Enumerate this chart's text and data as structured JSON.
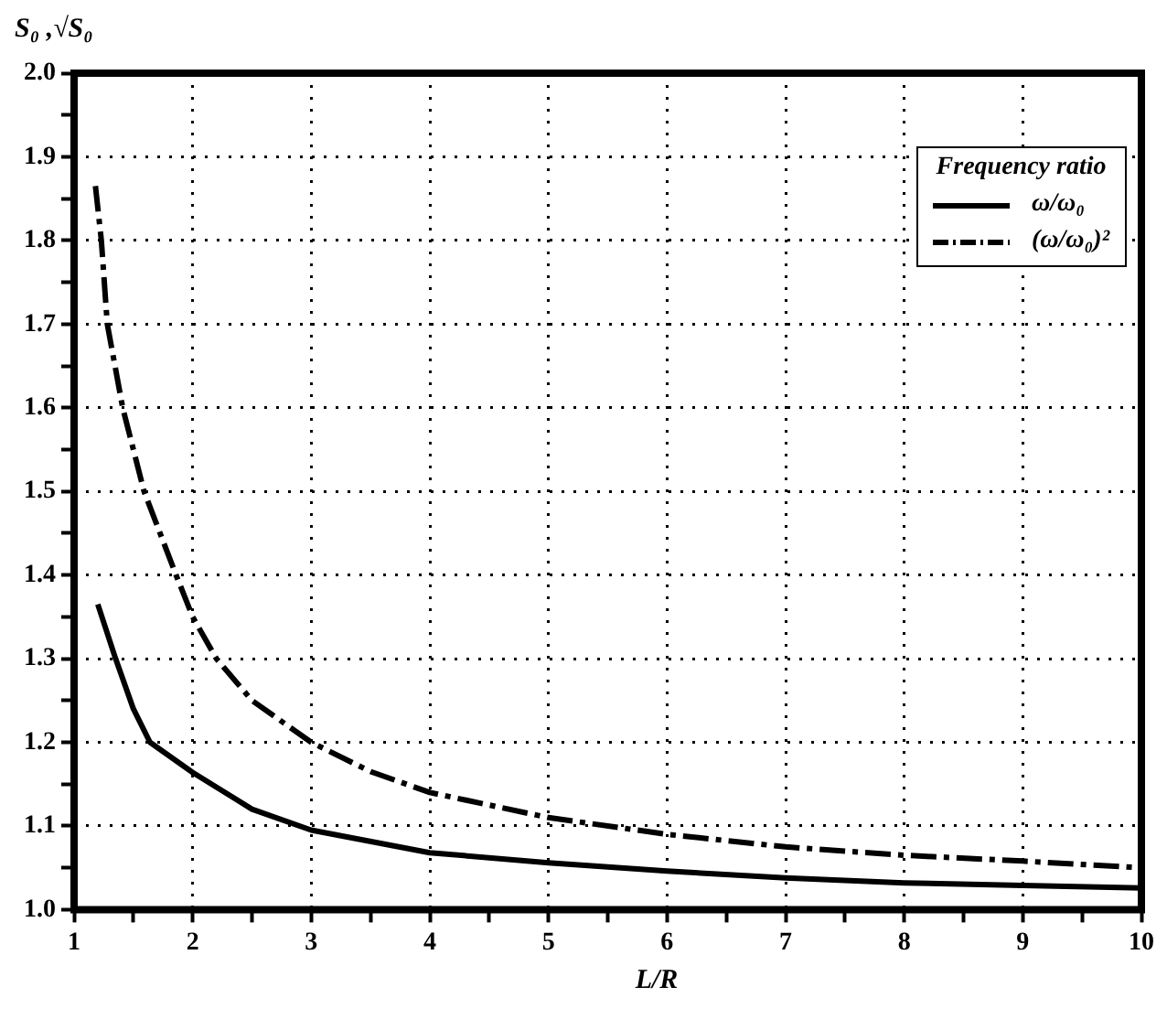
{
  "chart_data": {
    "type": "line",
    "xlabel": "L/R",
    "ylabel": "S₀ ,√S₀",
    "legend_title": "Frequency ratio",
    "legend": "top right",
    "grid": true,
    "marker": "none",
    "xlim": [
      1,
      10
    ],
    "ylim": [
      1,
      2
    ],
    "xticks": [
      1,
      {
        "value": 1.5,
        "label": null
      },
      2,
      {
        "value": 2.5,
        "label": null
      },
      3,
      {
        "value": 3.5,
        "label": null
      },
      4,
      {
        "value": 4.5,
        "label": null
      },
      5,
      {
        "value": 5.5,
        "label": null
      },
      6,
      {
        "value": 6.5,
        "label": null
      },
      7,
      {
        "value": 7.5,
        "label": null
      },
      8,
      {
        "value": 8.5,
        "label": null
      },
      9,
      {
        "value": 9.5,
        "label": null
      },
      10
    ],
    "yticks": [
      {
        "value": 1,
        "label": "1.0"
      },
      {
        "value": 1.05,
        "label": null
      },
      1.1,
      {
        "value": 1.15,
        "label": null
      },
      1.2,
      {
        "value": 1.25,
        "label": null
      },
      1.3,
      {
        "value": 1.35,
        "label": null
      },
      1.4,
      {
        "value": 1.45,
        "label": null
      },
      1.5,
      {
        "value": 1.55,
        "label": null
      },
      1.6,
      {
        "value": 1.65,
        "label": null
      },
      1.7,
      {
        "value": 1.75,
        "label": null
      },
      1.8,
      {
        "value": 1.85,
        "label": null
      },
      1.9,
      {
        "value": 1.95,
        "label": null
      },
      {
        "value": 2,
        "label": "2.0"
      }
    ],
    "series": [
      {
        "name": "ω/ω₀",
        "color": "#000000",
        "line_style": "solid",
        "x": [
          1.2,
          1.35,
          1.5,
          1.64,
          2,
          2.5,
          3,
          4,
          5,
          6,
          7,
          8,
          9,
          10
        ],
        "values": [
          1.365,
          1.3,
          1.24,
          1.2,
          1.164,
          1.12,
          1.095,
          1.068,
          1.056,
          1.046,
          1.038,
          1.032,
          1.029,
          1.026
        ]
      },
      {
        "name": "(ω/ω₀)²",
        "color": "#000000",
        "line_style": "dashdot",
        "x": [
          1.18,
          1.23,
          1.28,
          1.41,
          1.59,
          1.86,
          2,
          2.2,
          2.5,
          3,
          3.5,
          4,
          5,
          6,
          7,
          8,
          9,
          10
        ],
        "values": [
          1.865,
          1.8,
          1.7,
          1.6,
          1.5,
          1.4,
          1.35,
          1.3,
          1.25,
          1.2,
          1.165,
          1.14,
          1.11,
          1.09,
          1.075,
          1.065,
          1.058,
          1.05
        ]
      }
    ]
  }
}
